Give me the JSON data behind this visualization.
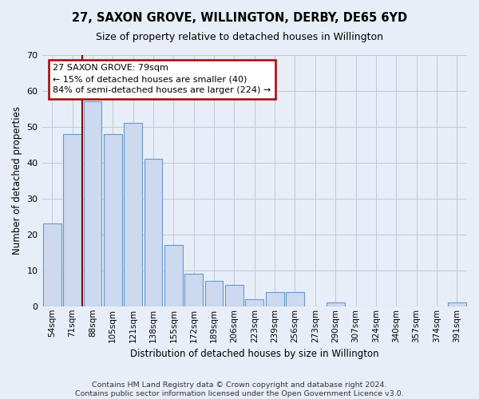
{
  "title_line1": "27, SAXON GROVE, WILLINGTON, DERBY, DE65 6YD",
  "title_line2": "Size of property relative to detached houses in Willington",
  "xlabel": "Distribution of detached houses by size in Willington",
  "ylabel": "Number of detached properties",
  "categories": [
    "54sqm",
    "71sqm",
    "88sqm",
    "105sqm",
    "121sqm",
    "138sqm",
    "155sqm",
    "172sqm",
    "189sqm",
    "206sqm",
    "223sqm",
    "239sqm",
    "256sqm",
    "273sqm",
    "290sqm",
    "307sqm",
    "324sqm",
    "340sqm",
    "357sqm",
    "374sqm",
    "391sqm"
  ],
  "values": [
    23,
    48,
    57,
    48,
    51,
    41,
    17,
    9,
    7,
    6,
    2,
    4,
    4,
    0,
    1,
    0,
    0,
    0,
    0,
    0,
    1
  ],
  "bar_color": "#ccd9ee",
  "bar_edge_color": "#6699cc",
  "ylim": [
    0,
    70
  ],
  "yticks": [
    0,
    10,
    20,
    30,
    40,
    50,
    60,
    70
  ],
  "vline_color": "#8b0000",
  "vline_x": 1.5,
  "annotation_text_line1": "27 SAXON GROVE: 79sqm",
  "annotation_text_line2": "← 15% of detached houses are smaller (40)",
  "annotation_text_line3": "84% of semi-detached houses are larger (224) →",
  "annotation_box_facecolor": "#ffffff",
  "annotation_box_edgecolor": "#aa0000",
  "background_color": "#e8eef8",
  "grid_color": "#c0c8d8",
  "footer_line1": "Contains HM Land Registry data © Crown copyright and database right 2024.",
  "footer_line2": "Contains public sector information licensed under the Open Government Licence v3.0."
}
